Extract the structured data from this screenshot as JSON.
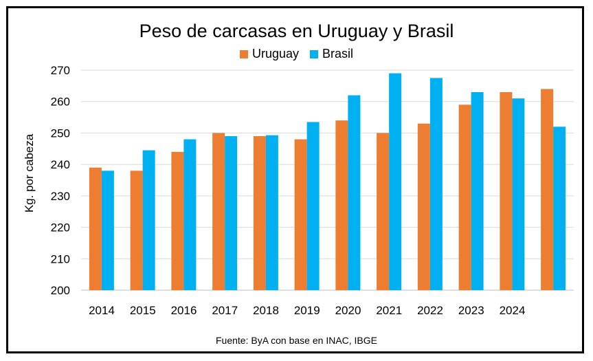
{
  "chart_data": {
    "type": "bar",
    "title": "Peso de carcasas en Uruguay y Brasil",
    "ylabel": "Kg. por cabeza",
    "xlabel": "",
    "source": "Fuente: ByA con base en INAC, IBGE",
    "categories": [
      "2014",
      "2015",
      "2016",
      "2017",
      "2018",
      "2019",
      "2020",
      "2021",
      "2022",
      "2023",
      "2024",
      ""
    ],
    "ylim": [
      200,
      270
    ],
    "yticks": [
      200,
      210,
      220,
      230,
      240,
      250,
      260,
      270
    ],
    "grid": true,
    "legend_position": "top-center",
    "series": [
      {
        "name": "Uruguay",
        "color": "#ED7D31",
        "values": [
          239,
          238,
          244,
          250,
          249,
          248,
          254,
          250,
          253,
          259,
          263,
          264
        ]
      },
      {
        "name": "Brasil",
        "color": "#00B0F0",
        "values": [
          238,
          244.5,
          248,
          249,
          249.3,
          253.5,
          262,
          269,
          267.5,
          263,
          261,
          252
        ]
      }
    ]
  }
}
